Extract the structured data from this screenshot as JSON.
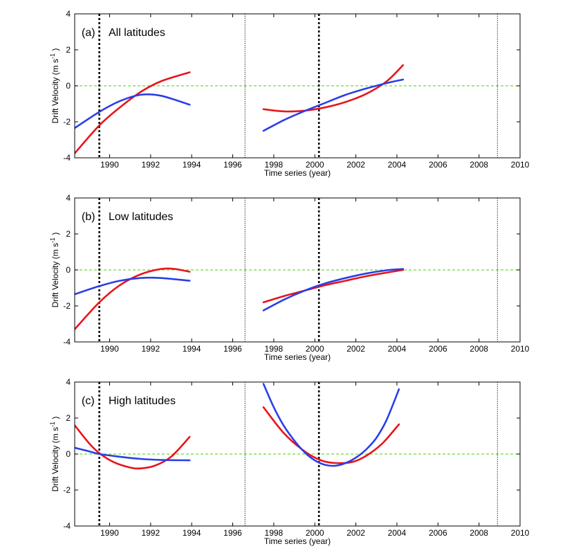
{
  "chart_data": [
    {
      "type": "line",
      "panel_label": "(a)",
      "title": "All latitudes",
      "xlabel": "Time series (year)",
      "ylabel": "Drift Velocity (m s",
      "ylabel_exp": "-1",
      "ylabel_close": " )",
      "xlim": [
        1988.3,
        2010
      ],
      "ylim": [
        -4,
        4
      ],
      "xticks": [
        1990,
        1992,
        1994,
        1996,
        1998,
        2000,
        2002,
        2004,
        2006,
        2008,
        2010
      ],
      "yticks": [
        -4,
        -2,
        0,
        2,
        4
      ],
      "reference_line": {
        "y": 0,
        "color": "#66dd33",
        "style": "dashed"
      },
      "vlines": [
        {
          "x": 1989.5,
          "style": "thick-dotted"
        },
        {
          "x": 1996.6,
          "style": "thin-dotted"
        },
        {
          "x": 2000.2,
          "style": "thick-dotted"
        },
        {
          "x": 2008.9,
          "style": "thin-dotted"
        }
      ],
      "series": [
        {
          "name": "red",
          "color": "#e8141a",
          "segments": [
            {
              "x": [
                1988.3,
                1989.5,
                1990.5,
                1991.5,
                1992.5,
                1993.9
              ],
              "y": [
                -3.75,
                -2.2,
                -1.2,
                -0.35,
                0.25,
                0.75
              ]
            },
            {
              "x": [
                1997.5,
                1998.5,
                1999.5,
                2000.5,
                2001.5,
                2002.5,
                2003.5,
                2004.3
              ],
              "y": [
                -1.3,
                -1.42,
                -1.38,
                -1.2,
                -0.9,
                -0.45,
                0.25,
                1.15
              ]
            }
          ]
        },
        {
          "name": "blue",
          "color": "#2a3ee8",
          "segments": [
            {
              "x": [
                1988.3,
                1989.5,
                1990.5,
                1991.5,
                1992.5,
                1993.9
              ],
              "y": [
                -2.35,
                -1.45,
                -0.85,
                -0.5,
                -0.55,
                -1.05
              ]
            },
            {
              "x": [
                1997.5,
                1998.5,
                1999.5,
                2000.5,
                2001.5,
                2002.5,
                2003.5,
                2004.3
              ],
              "y": [
                -2.5,
                -1.9,
                -1.4,
                -0.95,
                -0.5,
                -0.15,
                0.15,
                0.35
              ]
            }
          ]
        }
      ]
    },
    {
      "type": "line",
      "panel_label": "(b)",
      "title": "Low latitudes",
      "xlabel": "Time series (year)",
      "ylabel": "Drift Velocity (m s",
      "ylabel_exp": "-1",
      "ylabel_close": " )",
      "xlim": [
        1988.3,
        2010
      ],
      "ylim": [
        -4,
        4
      ],
      "xticks": [
        1990,
        1992,
        1994,
        1996,
        1998,
        2000,
        2002,
        2004,
        2006,
        2008,
        2010
      ],
      "yticks": [
        -4,
        -2,
        0,
        2,
        4
      ],
      "reference_line": {
        "y": 0,
        "color": "#66dd33",
        "style": "dashed"
      },
      "vlines": [
        {
          "x": 1989.5,
          "style": "thick-dotted"
        },
        {
          "x": 1996.6,
          "style": "thin-dotted"
        },
        {
          "x": 2000.2,
          "style": "thick-dotted"
        },
        {
          "x": 2008.9,
          "style": "thin-dotted"
        }
      ],
      "series": [
        {
          "name": "red",
          "color": "#e8141a",
          "segments": [
            {
              "x": [
                1988.3,
                1989.5,
                1990.5,
                1991.5,
                1992.5,
                1993.2,
                1993.9
              ],
              "y": [
                -3.3,
                -1.8,
                -0.85,
                -0.25,
                0.05,
                0.05,
                -0.1
              ]
            },
            {
              "x": [
                1997.5,
                1998.5,
                1999.5,
                2000.5,
                2001.5,
                2002.5,
                2003.5,
                2004.3
              ],
              "y": [
                -1.8,
                -1.45,
                -1.15,
                -0.85,
                -0.6,
                -0.35,
                -0.15,
                0.0
              ]
            }
          ]
        },
        {
          "name": "blue",
          "color": "#2a3ee8",
          "segments": [
            {
              "x": [
                1988.3,
                1989.5,
                1990.5,
                1991.5,
                1992.5,
                1993.9
              ],
              "y": [
                -1.35,
                -0.9,
                -0.6,
                -0.45,
                -0.45,
                -0.6
              ]
            },
            {
              "x": [
                1997.5,
                1998.5,
                1999.5,
                2000.5,
                2001.5,
                2002.5,
                2003.5,
                2004.3
              ],
              "y": [
                -2.25,
                -1.65,
                -1.15,
                -0.75,
                -0.45,
                -0.2,
                -0.02,
                0.05
              ]
            }
          ]
        }
      ]
    },
    {
      "type": "line",
      "panel_label": "(c)",
      "title": "High latitudes",
      "xlabel": "Time series (year)",
      "ylabel": "Drift Velocity (m s",
      "ylabel_exp": "-1",
      "ylabel_close": " )",
      "xlim": [
        1988.3,
        2010
      ],
      "ylim": [
        -4,
        4
      ],
      "xticks": [
        1990,
        1992,
        1994,
        1996,
        1998,
        2000,
        2002,
        2004,
        2006,
        2008,
        2010
      ],
      "yticks": [
        -4,
        -2,
        0,
        2,
        4
      ],
      "reference_line": {
        "y": 0,
        "color": "#66dd33",
        "style": "dashed"
      },
      "vlines": [
        {
          "x": 1989.5,
          "style": "thick-dotted"
        },
        {
          "x": 1996.6,
          "style": "thin-dotted"
        },
        {
          "x": 2000.2,
          "style": "thick-dotted"
        },
        {
          "x": 2008.9,
          "style": "thin-dotted"
        }
      ],
      "series": [
        {
          "name": "red",
          "color": "#e8141a",
          "segments": [
            {
              "x": [
                1988.3,
                1989.0,
                1989.5,
                1990.2,
                1991.0,
                1991.5,
                1992.2,
                1993.0,
                1993.9
              ],
              "y": [
                1.6,
                0.6,
                0.05,
                -0.45,
                -0.75,
                -0.8,
                -0.65,
                -0.15,
                0.95
              ]
            },
            {
              "x": [
                1997.5,
                1998.5,
                1999.5,
                2000.3,
                2001.0,
                2001.8,
                2002.5,
                2003.3,
                2004.1
              ],
              "y": [
                2.6,
                1.15,
                0.15,
                -0.35,
                -0.5,
                -0.45,
                -0.1,
                0.6,
                1.65
              ]
            }
          ]
        },
        {
          "name": "blue",
          "color": "#2a3ee8",
          "segments": [
            {
              "x": [
                1988.3,
                1989.0,
                1989.5,
                1990.5,
                1991.5,
                1992.5,
                1993.9
              ],
              "y": [
                0.35,
                0.15,
                0.0,
                -0.15,
                -0.27,
                -0.33,
                -0.35
              ]
            },
            {
              "x": [
                1997.5,
                1998.0,
                1998.5,
                1999.0,
                1999.5,
                2000.0,
                2000.5,
                2001.0,
                2001.5,
                2002.0,
                2002.5,
                2003.0,
                2003.5,
                2004.1
              ],
              "y": [
                3.9,
                2.6,
                1.55,
                0.75,
                0.1,
                -0.35,
                -0.6,
                -0.65,
                -0.5,
                -0.2,
                0.25,
                0.9,
                1.9,
                3.6
              ]
            }
          ]
        }
      ]
    }
  ]
}
